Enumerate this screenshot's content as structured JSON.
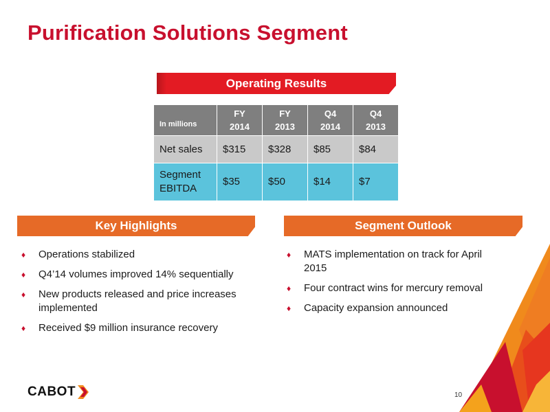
{
  "slide": {
    "title": "Purification Solutions Segment",
    "page_number": "10"
  },
  "operating_results": {
    "banner": "Operating Results",
    "corner_label": "In millions",
    "columns": [
      {
        "line1": "FY",
        "line2": "2014"
      },
      {
        "line1": "FY",
        "line2": "2013"
      },
      {
        "line1": "Q4",
        "line2": "2014"
      },
      {
        "line1": "Q4",
        "line2": "2013"
      }
    ],
    "rows": [
      {
        "label": "Net sales",
        "values": [
          "$315",
          "$328",
          "$85",
          "$84"
        ]
      },
      {
        "label": "Segment EBITDA",
        "values": [
          "$35",
          "$50",
          "$14",
          "$7"
        ]
      }
    ]
  },
  "key_highlights": {
    "banner": "Key Highlights",
    "items": [
      "Operations stabilized",
      "Q4’14 volumes improved 14% sequentially",
      "New products released and price increases implemented",
      "Received $9 million insurance recovery"
    ]
  },
  "segment_outlook": {
    "banner": "Segment Outlook",
    "items": [
      "MATS implementation on track for April 2015",
      "Four contract wins for mercury removal",
      "Capacity expansion announced"
    ]
  },
  "logo": {
    "text": "CABOT"
  },
  "colors": {
    "title": "#c8102e",
    "banner_red": "#e31b23",
    "banner_orange": "#e66a27",
    "header_gray": "#7f7f7f",
    "row_gray": "#c9c9c9",
    "row_cyan": "#5bc3dc",
    "bullet": "#c8102e"
  },
  "icons": [
    "diamond-bullet-icon",
    "cabot-chevron-icon"
  ]
}
